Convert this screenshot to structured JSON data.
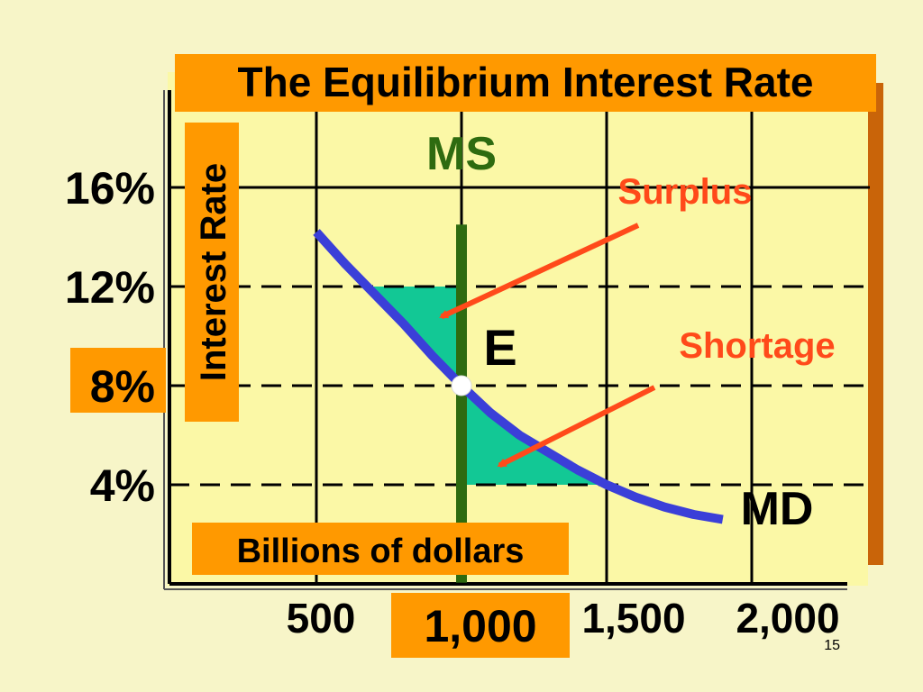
{
  "slide": {
    "number": "15",
    "background_color": "#f7f5c8"
  },
  "chart_data": {
    "type": "line",
    "title": "The Equilibrium Interest Rate",
    "xlabel": "Billions of dollars",
    "ylabel": "Interest Rate",
    "xlim": [
      0,
      2000
    ],
    "ylim": [
      0,
      20
    ],
    "x_ticks": [
      {
        "value": 500,
        "label": "500",
        "highlighted": false
      },
      {
        "value": 1000,
        "label": "1,000",
        "highlighted": true
      },
      {
        "value": 1500,
        "label": "1,500",
        "highlighted": false
      },
      {
        "value": 2000,
        "label": "2,000",
        "highlighted": false
      }
    ],
    "y_ticks": [
      {
        "value": 4,
        "label": "4%",
        "highlighted": false
      },
      {
        "value": 8,
        "label": "8%",
        "highlighted": true
      },
      {
        "value": 12,
        "label": "12%",
        "highlighted": false
      },
      {
        "value": 16,
        "label": "16%",
        "highlighted": false
      }
    ],
    "dashed_levels": [
      4,
      8,
      12
    ],
    "series": [
      {
        "name": "MS",
        "color": "#2e6b10",
        "x": [
          1000,
          1000
        ],
        "y": [
          0.05,
          14.5
        ]
      },
      {
        "name": "MD",
        "color": "#3b3fd8",
        "x": [
          500,
          600,
          700,
          800,
          900,
          1000,
          1100,
          1200,
          1300,
          1400,
          1500,
          1600,
          1700,
          1800,
          1900
        ],
        "y": [
          14.2,
          12.9,
          11.7,
          10.5,
          9.2,
          8.0,
          6.9,
          6.0,
          5.3,
          4.6,
          4.0,
          3.5,
          3.1,
          2.8,
          2.6
        ]
      }
    ],
    "shaded_regions": [
      {
        "name": "surplus",
        "y_level": 12,
        "color": "#12c895"
      },
      {
        "name": "shortage",
        "y_level": 4,
        "color": "#12c895"
      }
    ],
    "equilibrium": {
      "label": "E",
      "x": 1000,
      "y": 8
    },
    "annotations": [
      {
        "text": "Surplus",
        "color": "#ff4a1a",
        "points_to_x": 900,
        "points_to_y": 11
      },
      {
        "text": "Shortage",
        "color": "#ff4a1a",
        "points_to_x": 1100,
        "points_to_y": 5
      }
    ],
    "grid": true,
    "colors": {
      "plot_bg": "#fbf8a6",
      "label_box": "#ff9900",
      "shadow": "#c96409",
      "grid": "#000000"
    }
  }
}
